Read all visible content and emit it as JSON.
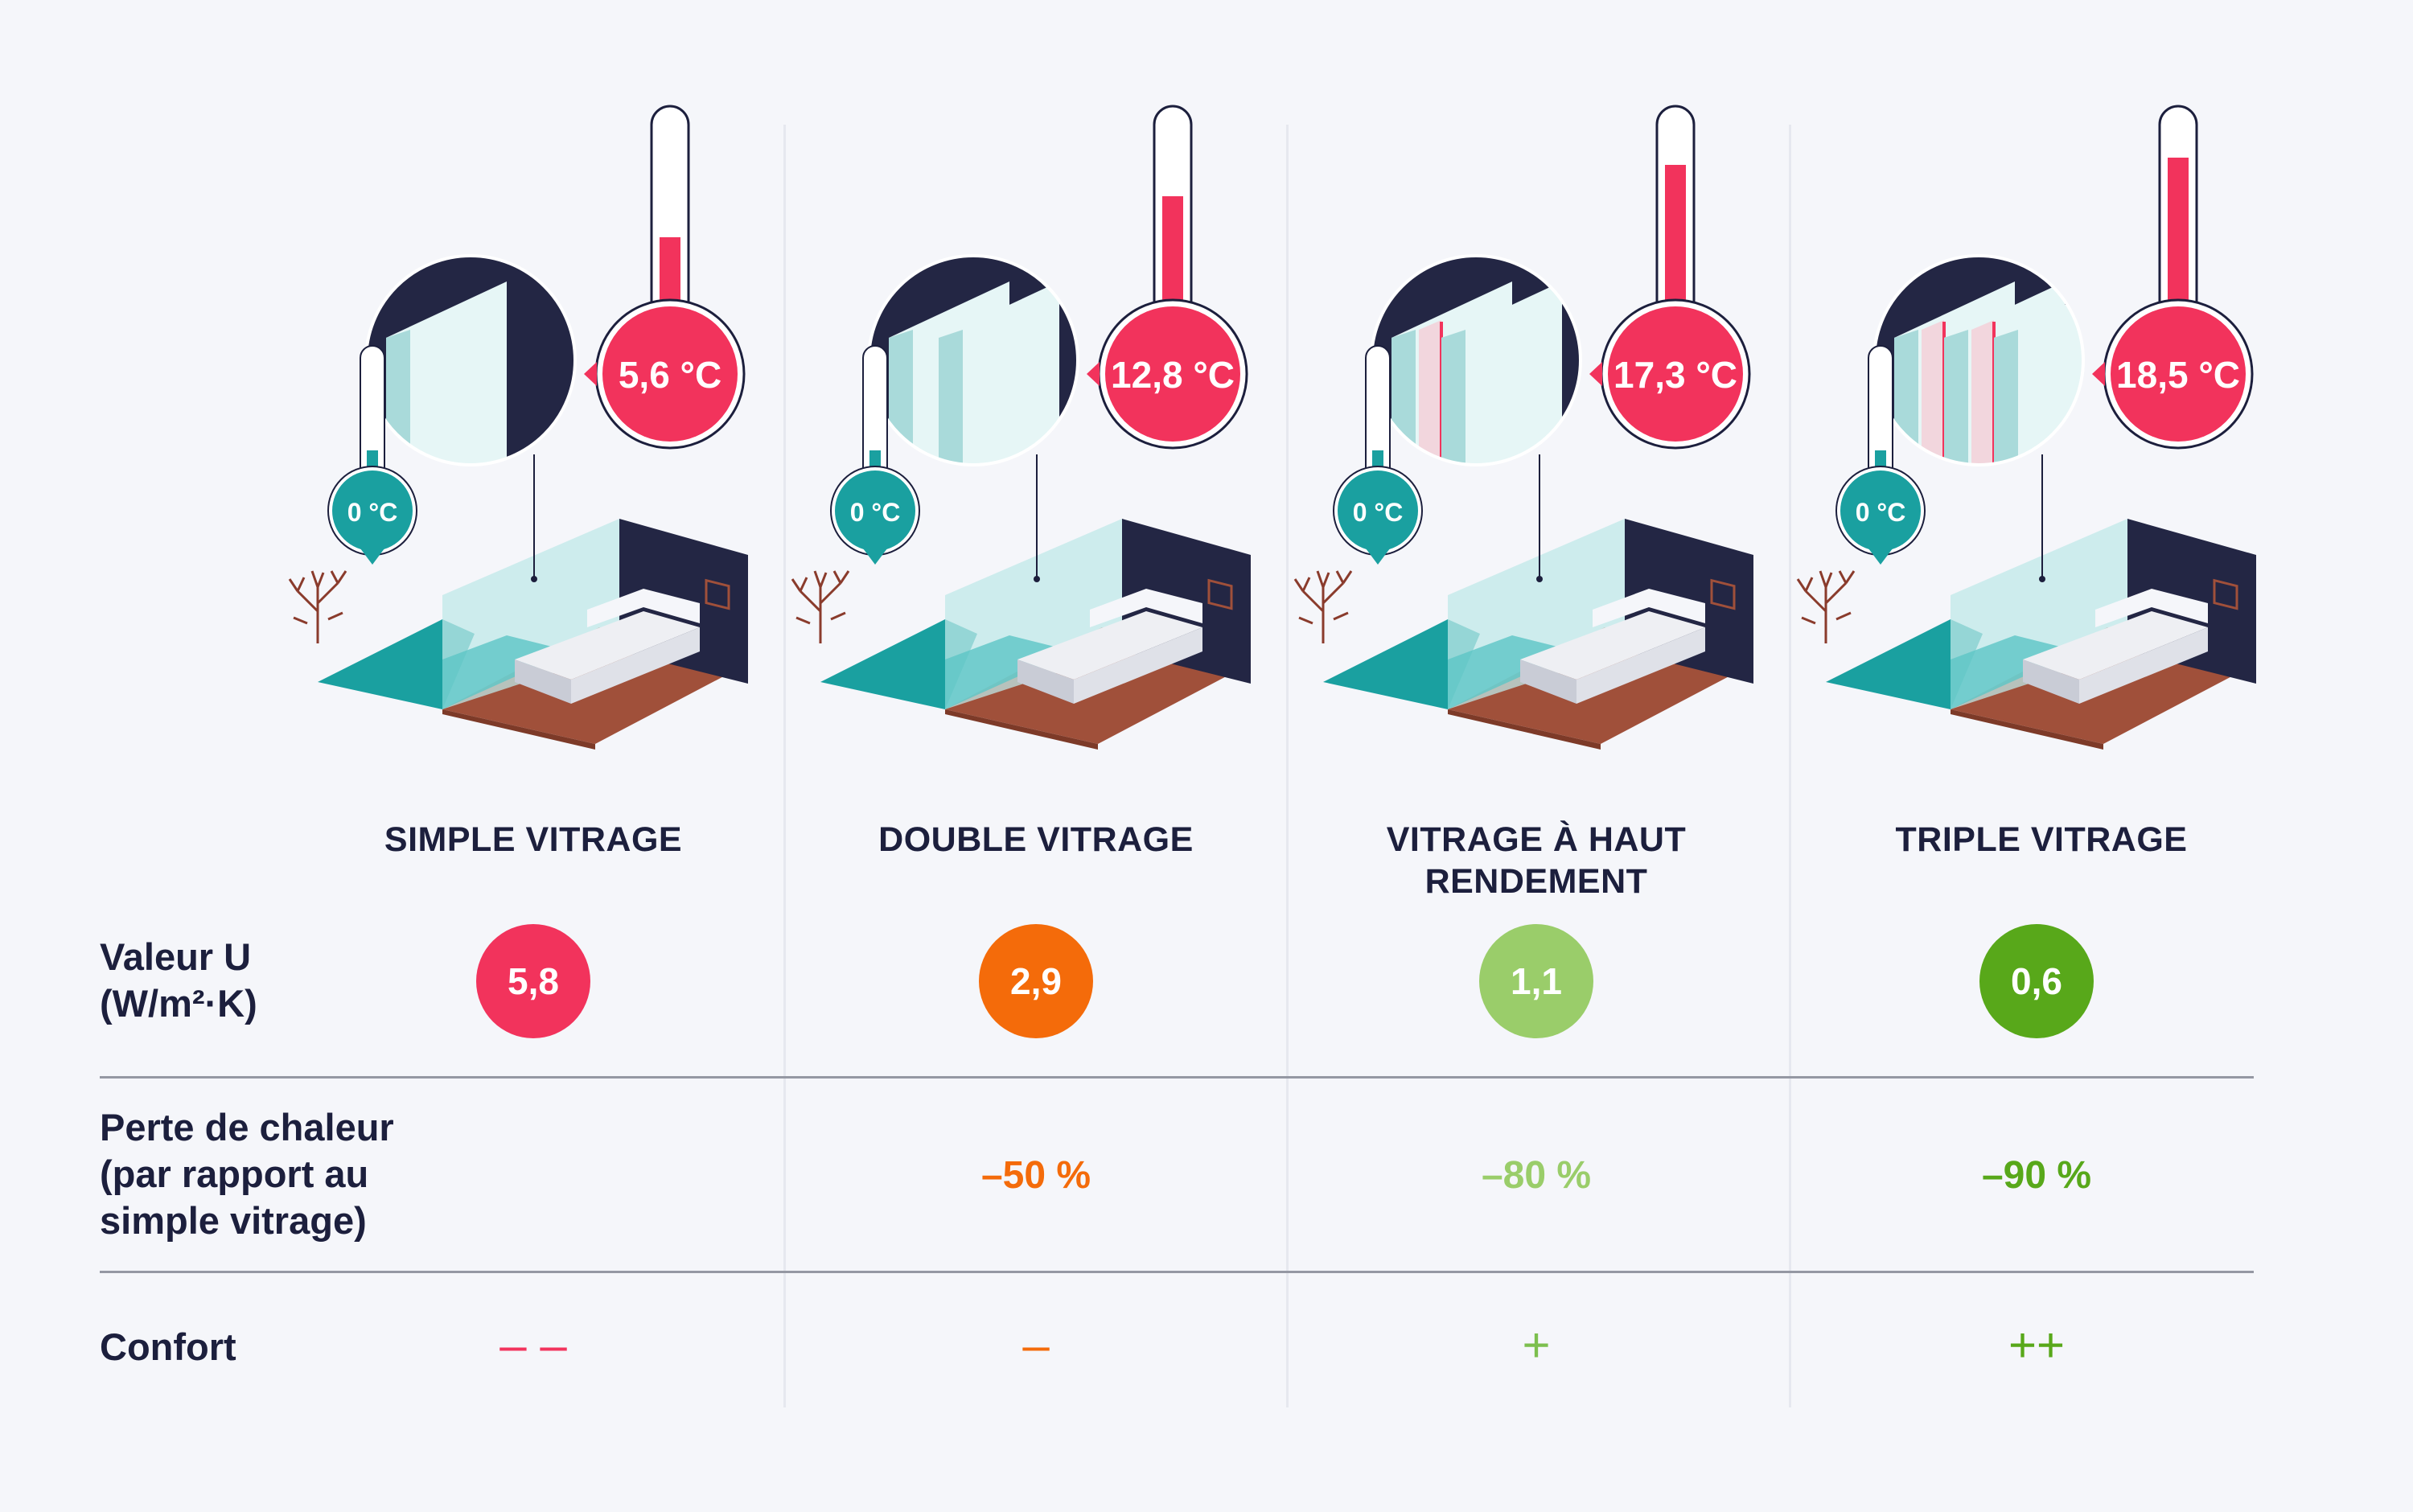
{
  "columns": [
    {
      "title": "SIMPLE VITRAGE",
      "inside_temp": "5,6 °C",
      "outside_temp": "0 °C",
      "u_value": "5,8",
      "u_color": "#f2335c",
      "loss": "",
      "loss_color": "#f2335c",
      "comfort": "– –",
      "comfort_color": "#f2335c",
      "thermo_level": 0.55,
      "panes": 1
    },
    {
      "title": "DOUBLE VITRAGE",
      "inside_temp": "12,8 °C",
      "outside_temp": "0 °C",
      "u_value": "2,9",
      "u_color": "#f46b0a",
      "loss": "–50 %",
      "loss_color": "#f46b0a",
      "comfort": "–",
      "comfort_color": "#f46b0a",
      "thermo_level": 0.72,
      "panes": 2
    },
    {
      "title": "VITRAGE À HAUT RENDEMENT",
      "inside_temp": "17,3 °C",
      "outside_temp": "0 °C",
      "u_value": "1,1",
      "u_color": "#9acd6a",
      "loss": "–80 %",
      "loss_color": "#9acd6a",
      "comfort": "+",
      "comfort_color": "#7cbf4e",
      "thermo_level": 0.85,
      "panes": 2
    },
    {
      "title": "TRIPLE VITRAGE",
      "inside_temp": "18,5 °C",
      "outside_temp": "0 °C",
      "u_value": "0,6",
      "u_color": "#58a81a",
      "loss": "–90 %",
      "loss_color": "#58a81a",
      "comfort": "++",
      "comfort_color": "#58a81a",
      "thermo_level": 0.88,
      "panes": 3
    }
  ],
  "rows": {
    "u_value_label_1": "Valeur U",
    "u_value_label_2": "(W/m²·K)",
    "heat_loss_label_1": "Perte de chaleur",
    "heat_loss_label_2": "(par rapport au",
    "heat_loss_label_3": "simple vitrage)",
    "comfort_label": "Confort"
  },
  "colors": {
    "hot": "#f2335c",
    "cold": "#1aa0a0",
    "wall": "#232644",
    "floor_wood": "#a0503a",
    "outside_ground": "#1aa0a0",
    "glass": "#bfe8e8"
  }
}
